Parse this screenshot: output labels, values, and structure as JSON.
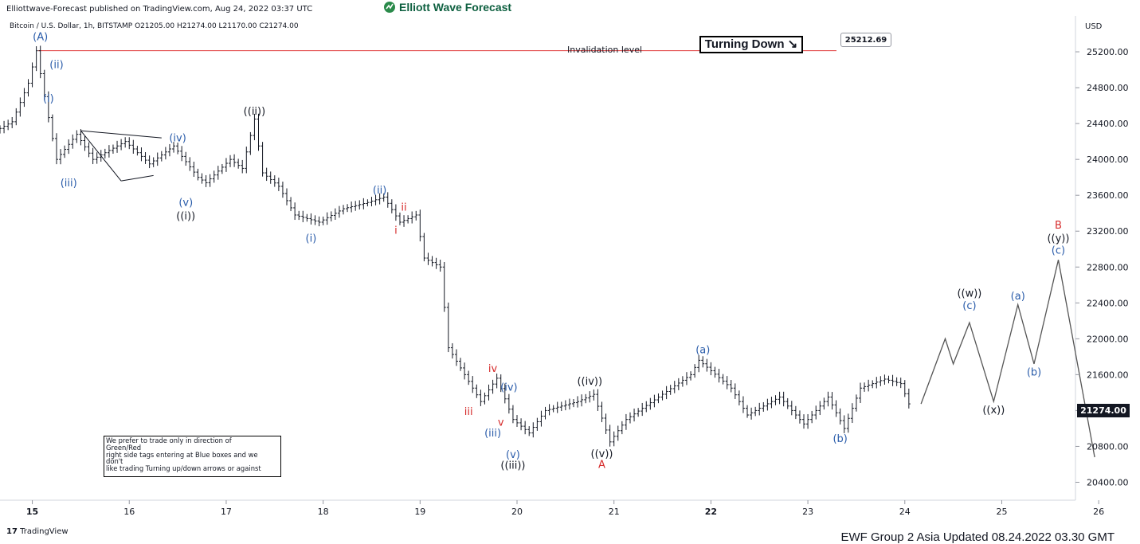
{
  "header": {
    "published": "Elliottwave-Forecast published on TradingView.com, Aug 24, 2022 03:37 UTC",
    "brand": "Elliott Wave Forecast",
    "symbol_line": "Bitcoin / U.S. Dollar, 1h, BITSTAMP  O21205.00  H21274.00  L21170.00  C21274.00"
  },
  "annotations": {
    "turning": "Turning Down ↘",
    "invalidation_label": "Invalidation level",
    "invalidation_price": "25212.69",
    "last_price": "21274.00",
    "note_lines": [
      "We prefer to trade only in direction of",
      "Green/Red",
      "right side tags entering at Blue boxes and we",
      "don't",
      "like trading Turning up/down arrows or against"
    ]
  },
  "footer": {
    "tradingview": "TradingView",
    "updated": "EWF Group 2 Asia  Updated 08.24.2022 03.30 GMT"
  },
  "colors": {
    "blue": "#2a5caa",
    "red": "#d62b2b",
    "black": "#131722",
    "invalidation": "#e03b3b",
    "grid": "#f0f3fa"
  },
  "chart_data": {
    "type": "line",
    "y_unit": "USD",
    "ylim": [
      20200,
      25600
    ],
    "xlim": [
      "2022-08-14T16:00",
      "2022-08-26T12:00"
    ],
    "y_ticks": [
      20400,
      20800,
      21200,
      21600,
      22000,
      22400,
      22800,
      23200,
      23600,
      24000,
      24400,
      24800,
      25200
    ],
    "y_tick_labels": [
      "20400.00",
      "20800.00",
      "21200.00",
      "21600.00",
      "22000.00",
      "22400.00",
      "22800.00",
      "23200.00",
      "23600.00",
      "24000.00",
      "24400.00",
      "24800.00",
      "25200.00"
    ],
    "x_ticks": [
      "2022-08-15",
      "2022-08-16",
      "2022-08-17",
      "2022-08-18",
      "2022-08-19",
      "2022-08-20",
      "2022-08-21",
      "2022-08-22",
      "2022-08-23",
      "2022-08-24",
      "2022-08-25",
      "2022-08-26"
    ],
    "x_tick_labels": [
      "15",
      "16",
      "17",
      "18",
      "19",
      "20",
      "21",
      "22",
      "23",
      "24",
      "25",
      "26"
    ],
    "grid": false,
    "invalidation_level": 25212.69,
    "last_close": 21274.0,
    "price_path": [
      [
        "2022-08-14T16:00",
        24320
      ],
      [
        "2022-08-14T20:00",
        24420
      ],
      [
        "2022-08-15T00:00",
        24850
      ],
      [
        "2022-08-15T02:00",
        25212
      ],
      [
        "2022-08-15T04:00",
        24700
      ],
      [
        "2022-08-15T07:00",
        24000
      ],
      [
        "2022-08-15T12:00",
        24280
      ],
      [
        "2022-08-15T16:00",
        24000
      ],
      [
        "2022-08-16T00:00",
        24200
      ],
      [
        "2022-08-16T06:00",
        23950
      ],
      [
        "2022-08-16T12:00",
        24150
      ],
      [
        "2022-08-16T18:00",
        23800
      ],
      [
        "2022-08-16T20:00",
        23740
      ],
      [
        "2022-08-17T02:00",
        24000
      ],
      [
        "2022-08-17T05:00",
        23900
      ],
      [
        "2022-08-17T08:00",
        24450
      ],
      [
        "2022-08-17T10:00",
        23850
      ],
      [
        "2022-08-17T14:00",
        23700
      ],
      [
        "2022-08-17T18:00",
        23380
      ],
      [
        "2022-08-18T00:00",
        23300
      ],
      [
        "2022-08-18T06:00",
        23450
      ],
      [
        "2022-08-18T12:00",
        23520
      ],
      [
        "2022-08-18T16:00",
        23580
      ],
      [
        "2022-08-18T20:00",
        23300
      ],
      [
        "2022-08-19T00:00",
        23380
      ],
      [
        "2022-08-19T02:00",
        22900
      ],
      [
        "2022-08-19T06:00",
        22800
      ],
      [
        "2022-08-19T08:00",
        21900
      ],
      [
        "2022-08-19T12:00",
        21600
      ],
      [
        "2022-08-19T16:00",
        21300
      ],
      [
        "2022-08-19T20:00",
        21560
      ],
      [
        "2022-08-20T00:00",
        21100
      ],
      [
        "2022-08-20T04:00",
        20950
      ],
      [
        "2022-08-20T08:00",
        21200
      ],
      [
        "2022-08-20T16:00",
        21300
      ],
      [
        "2022-08-20T20:00",
        21380
      ],
      [
        "2022-08-21T00:00",
        20850
      ],
      [
        "2022-08-21T04:00",
        21100
      ],
      [
        "2022-08-21T12:00",
        21350
      ],
      [
        "2022-08-21T20:00",
        21600
      ],
      [
        "2022-08-21T22:00",
        21760
      ],
      [
        "2022-08-22T06:00",
        21450
      ],
      [
        "2022-08-22T10:00",
        21150
      ],
      [
        "2022-08-22T18:00",
        21350
      ],
      [
        "2022-08-23T00:00",
        21050
      ],
      [
        "2022-08-23T06:00",
        21350
      ],
      [
        "2022-08-23T10:00",
        21000
      ],
      [
        "2022-08-23T14:00",
        21450
      ],
      [
        "2022-08-23T20:00",
        21550
      ],
      [
        "2022-08-24T00:00",
        21500
      ],
      [
        "2022-08-24T02:00",
        21274
      ]
    ],
    "projection": [
      [
        "2022-08-24T04:00",
        21274
      ],
      [
        "2022-08-24T10:00",
        22000
      ],
      [
        "2022-08-24T12:00",
        21720
      ],
      [
        "2022-08-24T16:00",
        22180
      ],
      [
        "2022-08-24T22:00",
        21300
      ],
      [
        "2022-08-25T04:00",
        22380
      ],
      [
        "2022-08-25T08:00",
        21720
      ],
      [
        "2022-08-25T14:00",
        22880
      ],
      [
        "2022-08-25T23:00",
        20680
      ]
    ],
    "triangle": [
      [
        [
          "2022-08-15T12:00",
          24320
        ],
        [
          "2022-08-16T08:00",
          24240
        ]
      ],
      [
        [
          "2022-08-15T22:00",
          23760
        ],
        [
          "2022-08-16T06:00",
          23820
        ]
      ]
    ],
    "wave_labels": [
      {
        "text": "(A)",
        "t": "2022-08-15T02:00",
        "y": 25330,
        "color": "blue"
      },
      {
        "text": "(ii)",
        "t": "2022-08-15T06:00",
        "y": 25020,
        "color": "blue"
      },
      {
        "text": "(i)",
        "t": "2022-08-15T04:00",
        "y": 24640,
        "color": "blue"
      },
      {
        "text": "(iii)",
        "t": "2022-08-15T09:00",
        "y": 23700,
        "color": "blue"
      },
      {
        "text": "(iv)",
        "t": "2022-08-16T12:00",
        "y": 24200,
        "color": "blue"
      },
      {
        "text": "(v)",
        "t": "2022-08-16T14:00",
        "y": 23480,
        "color": "blue"
      },
      {
        "text": "((i))",
        "t": "2022-08-16T14:00",
        "y": 23330,
        "color": "black"
      },
      {
        "text": "((ii))",
        "t": "2022-08-17T07:00",
        "y": 24500,
        "color": "black"
      },
      {
        "text": "(i)",
        "t": "2022-08-17T21:00",
        "y": 23080,
        "color": "blue"
      },
      {
        "text": "(ii)",
        "t": "2022-08-18T14:00",
        "y": 23620,
        "color": "blue"
      },
      {
        "text": "ii",
        "t": "2022-08-18T20:00",
        "y": 23430,
        "color": "red"
      },
      {
        "text": "i",
        "t": "2022-08-18T18:00",
        "y": 23170,
        "color": "red"
      },
      {
        "text": "iv",
        "t": "2022-08-19T18:00",
        "y": 21630,
        "color": "red"
      },
      {
        "text": "iii",
        "t": "2022-08-19T12:00",
        "y": 21150,
        "color": "red"
      },
      {
        "text": "(iv)",
        "t": "2022-08-19T22:00",
        "y": 21420,
        "color": "blue"
      },
      {
        "text": "v",
        "t": "2022-08-19T20:00",
        "y": 21030,
        "color": "red"
      },
      {
        "text": "(iii)",
        "t": "2022-08-19T18:00",
        "y": 20910,
        "color": "blue"
      },
      {
        "text": "(v)",
        "t": "2022-08-19T23:00",
        "y": 20670,
        "color": "blue"
      },
      {
        "text": "((iii))",
        "t": "2022-08-19T23:00",
        "y": 20550,
        "color": "black"
      },
      {
        "text": "((iv))",
        "t": "2022-08-20T18:00",
        "y": 21490,
        "color": "black"
      },
      {
        "text": "((v))",
        "t": "2022-08-20T21:00",
        "y": 20680,
        "color": "black"
      },
      {
        "text": "A",
        "t": "2022-08-20T21:00",
        "y": 20560,
        "color": "red"
      },
      {
        "text": "(a)",
        "t": "2022-08-21T22:00",
        "y": 21840,
        "color": "blue"
      },
      {
        "text": "(b)",
        "t": "2022-08-23T08:00",
        "y": 20850,
        "color": "blue"
      },
      {
        "text": "((w))",
        "t": "2022-08-24T16:00",
        "y": 22470,
        "color": "black"
      },
      {
        "text": "(c)",
        "t": "2022-08-24T16:00",
        "y": 22330,
        "color": "blue"
      },
      {
        "text": "((x))",
        "t": "2022-08-24T22:00",
        "y": 21170,
        "color": "black"
      },
      {
        "text": "(a)",
        "t": "2022-08-25T04:00",
        "y": 22440,
        "color": "blue"
      },
      {
        "text": "(b)",
        "t": "2022-08-25T08:00",
        "y": 21590,
        "color": "blue"
      },
      {
        "text": "B",
        "t": "2022-08-25T14:00",
        "y": 23230,
        "color": "red"
      },
      {
        "text": "((y))",
        "t": "2022-08-25T14:00",
        "y": 23080,
        "color": "black"
      },
      {
        "text": "(c)",
        "t": "2022-08-25T14:00",
        "y": 22950,
        "color": "blue"
      }
    ]
  }
}
